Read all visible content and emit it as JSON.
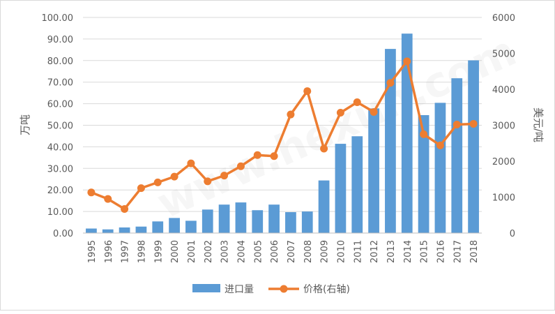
{
  "chart_data": {
    "type": "bar+line",
    "categories": [
      "1995",
      "1996",
      "1997",
      "1998",
      "1999",
      "2000",
      "2001",
      "2002",
      "2003",
      "2004",
      "2005",
      "2006",
      "2007",
      "2008",
      "2009",
      "2010",
      "2011",
      "2012",
      "2013",
      "2014",
      "2015",
      "2016",
      "2017",
      "2018"
    ],
    "series": [
      {
        "name": "进口量",
        "type": "bar",
        "axis": "left",
        "color": "#5b9bd5",
        "values": [
          2.1,
          1.7,
          2.6,
          3.0,
          5.4,
          7.0,
          5.7,
          10.9,
          13.2,
          14.2,
          10.6,
          13.2,
          9.7,
          10.0,
          24.4,
          41.4,
          44.9,
          57.8,
          85.4,
          92.5,
          54.7,
          60.4,
          71.8,
          80.1
        ]
      },
      {
        "name": "价格(右轴)",
        "type": "line",
        "axis": "right",
        "color": "#ed7d31",
        "values": [
          1130,
          950,
          670,
          1250,
          1410,
          1570,
          1940,
          1440,
          1600,
          1860,
          2170,
          2140,
          3300,
          3950,
          2350,
          3350,
          3640,
          3370,
          4180,
          4780,
          2750,
          2440,
          3020,
          3040
        ]
      }
    ],
    "y_left": {
      "label": "万吨",
      "min": 0,
      "max": 100,
      "ticks": [
        "0.00",
        "10.00",
        "20.00",
        "30.00",
        "40.00",
        "50.00",
        "60.00",
        "70.00",
        "80.00",
        "90.00",
        "100.00"
      ]
    },
    "y_right": {
      "label": "美元/吨",
      "min": 0,
      "max": 6000,
      "ticks": [
        "0",
        "1000",
        "2000",
        "3000",
        "4000",
        "5000",
        "6000"
      ]
    },
    "grid": true,
    "legend": {
      "position": "bottom",
      "items": [
        "进口量",
        "价格(右轴)"
      ]
    },
    "watermark": "www.hexun.com"
  }
}
